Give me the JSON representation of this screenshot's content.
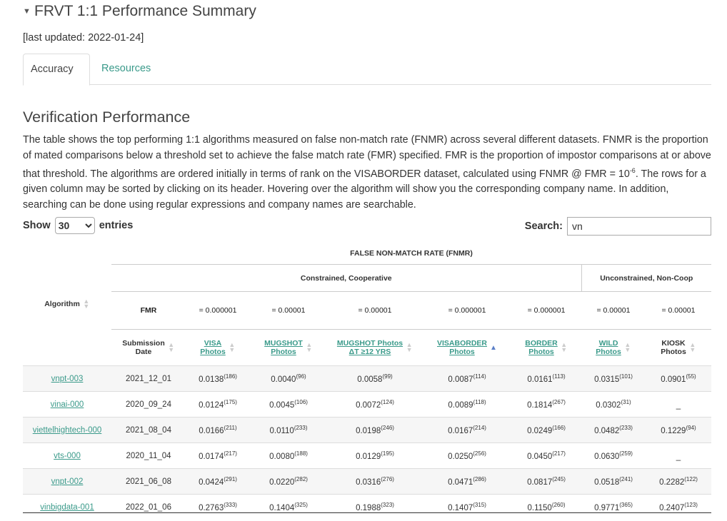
{
  "summary": {
    "title": "FRVT 1:1 Performance Summary",
    "toggle_icon": "triangle-down-icon",
    "updated": "[last updated: 2022-01-24]"
  },
  "tabs": [
    {
      "label": "Accuracy"
    },
    {
      "label": "Resources"
    }
  ],
  "section": {
    "title": "Verification Performance",
    "description_before": "The table shows the top performing 1:1 algorithms measured on false non-match rate (FNMR) across several different datasets. FNMR is the proportion of mated comparisons below a threshold set to achieve the false match rate (FMR) specified. FMR is the proportion of impostor comparisons at or above that threshold. The algorithms are ordered initially in terms of rank on the VISABORDER dataset, calculated using FNMR @ FMR = 10",
    "description_sup": "-6",
    "description_after": ". The rows for a given column may be sorted by clicking on its header. Hovering over the algorithm will show you the corresponding company name. In addition, searching can be done using regular expressions and company names are searchable."
  },
  "controls": {
    "show_label": "Show",
    "entries_value": "30",
    "entries_label": "entries",
    "search_label": "Search:",
    "search_value": "vn"
  },
  "table": {
    "super_header": "FALSE NON-MATCH RATE (FNMR)",
    "group_constrained": "Constrained, Cooperative",
    "group_unconstrained": "Unconstrained, Non-Coop",
    "algorithm_header": "Algorithm",
    "fmr_label": "FMR",
    "fmr_values": [
      "= 0.000001",
      "= 0.00001",
      "= 0.00001",
      "= 0.000001",
      "= 0.000001",
      "= 0.00001",
      "= 0.00001"
    ],
    "col_headers": [
      {
        "l1": "Submission",
        "l2": "Date",
        "link": false
      },
      {
        "l1": "VISA",
        "l2": "Photos",
        "link": true
      },
      {
        "l1": "MUGSHOT",
        "l2": "Photos",
        "link": true
      },
      {
        "l1": "MUGSHOT Photos",
        "l2": "ΔT ≥12 YRS",
        "link": true
      },
      {
        "l1": "VISABORDER",
        "l2": "Photos",
        "link": true
      },
      {
        "l1": "BORDER",
        "l2": "Photos",
        "link": true
      },
      {
        "l1": "WILD",
        "l2": "Photos",
        "link": true
      },
      {
        "l1": "KIOSK",
        "l2": "Photos",
        "link": false
      }
    ],
    "rows": [
      {
        "algorithm": "vnpt-003",
        "date": "2021_12_01",
        "cells": [
          [
            "0.0138",
            "(186)"
          ],
          [
            "0.0040",
            "(96)"
          ],
          [
            "0.0058",
            "(99)"
          ],
          [
            "0.0087",
            "(114)"
          ],
          [
            "0.0161",
            "(113)"
          ],
          [
            "0.0315",
            "(101)"
          ],
          [
            "0.0901",
            "(55)"
          ]
        ]
      },
      {
        "algorithm": "vinai-000",
        "date": "2020_09_24",
        "cells": [
          [
            "0.0124",
            "(175)"
          ],
          [
            "0.0045",
            "(106)"
          ],
          [
            "0.0072",
            "(124)"
          ],
          [
            "0.0089",
            "(118)"
          ],
          [
            "0.1814",
            "(267)"
          ],
          [
            "0.0302",
            "(31)"
          ],
          [
            "_",
            ""
          ]
        ]
      },
      {
        "algorithm": "viettelhightech-000",
        "date": "2021_08_04",
        "cells": [
          [
            "0.0166",
            "(211)"
          ],
          [
            "0.0110",
            "(233)"
          ],
          [
            "0.0198",
            "(246)"
          ],
          [
            "0.0167",
            "(214)"
          ],
          [
            "0.0249",
            "(166)"
          ],
          [
            "0.0482",
            "(233)"
          ],
          [
            "0.1229",
            "(94)"
          ]
        ]
      },
      {
        "algorithm": "vts-000",
        "date": "2020_11_04",
        "cells": [
          [
            "0.0174",
            "(217)"
          ],
          [
            "0.0080",
            "(188)"
          ],
          [
            "0.0129",
            "(195)"
          ],
          [
            "0.0250",
            "(256)"
          ],
          [
            "0.0450",
            "(217)"
          ],
          [
            "0.0630",
            "(259)"
          ],
          [
            "_",
            ""
          ]
        ]
      },
      {
        "algorithm": "vnpt-002",
        "date": "2021_06_08",
        "cells": [
          [
            "0.0424",
            "(291)"
          ],
          [
            "0.0220",
            "(282)"
          ],
          [
            "0.0316",
            "(276)"
          ],
          [
            "0.0471",
            "(286)"
          ],
          [
            "0.0817",
            "(245)"
          ],
          [
            "0.0518",
            "(241)"
          ],
          [
            "0.2282",
            "(122)"
          ]
        ]
      },
      {
        "algorithm": "vinbigdata-001",
        "date": "2022_01_06",
        "cells": [
          [
            "0.2763",
            "(333)"
          ],
          [
            "0.1404",
            "(325)"
          ],
          [
            "0.1988",
            "(323)"
          ],
          [
            "0.1407",
            "(315)"
          ],
          [
            "0.1150",
            "(260)"
          ],
          [
            "0.9771",
            "(365)"
          ],
          [
            "0.2407",
            "(123)"
          ]
        ]
      }
    ]
  }
}
